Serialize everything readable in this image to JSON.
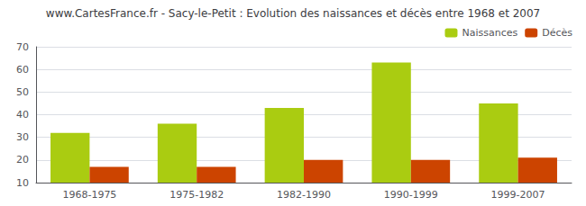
{
  "chart_data": {
    "type": "bar",
    "title": "www.CartesFrance.fr - Sacy-le-Petit : Evolution des naissances et décès entre 1968 et 2007",
    "categories": [
      "1968-1975",
      "1975-1982",
      "1982-1990",
      "1990-1999",
      "1999-2007"
    ],
    "series": [
      {
        "name": "Naissances",
        "color": "#aacc11",
        "values": [
          32,
          36,
          43,
          63,
          45
        ]
      },
      {
        "name": "Décès",
        "color": "#cc4400",
        "values": [
          17,
          17,
          20,
          20,
          21
        ]
      }
    ],
    "ylim": [
      10,
      70
    ],
    "yticks": [
      10,
      20,
      30,
      40,
      50,
      60,
      70
    ],
    "grid": true,
    "legend": "upper right"
  }
}
